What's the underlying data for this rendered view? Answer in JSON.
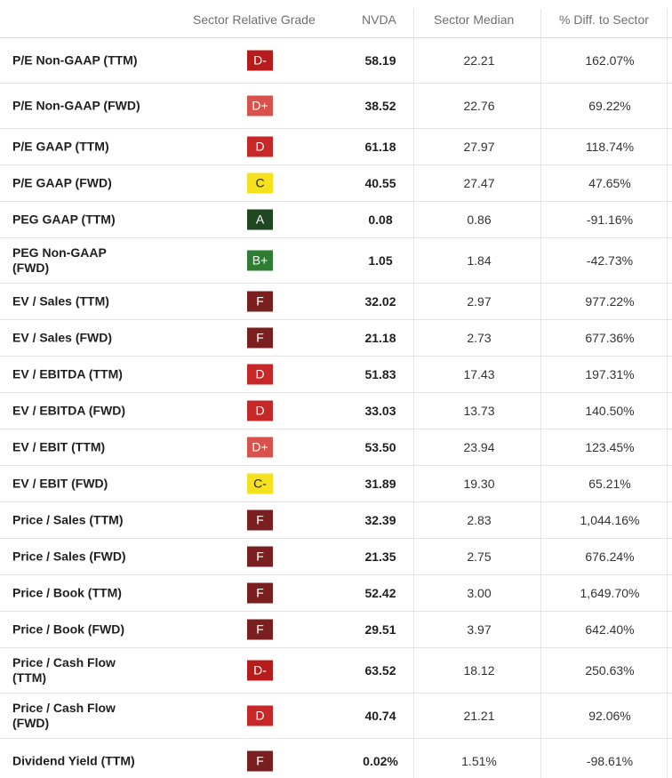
{
  "header": {
    "grade": "Sector Relative Grade",
    "ticker": "NVDA",
    "median": "Sector Median",
    "diff": "% Diff. to Sector"
  },
  "colors": {
    "A": "#1e4620",
    "B+": "#2f7d32",
    "C": "#f5e11d",
    "C-": "#f5e11d",
    "D+": "#d8514d",
    "D": "#c62828",
    "D-": "#b71c1c",
    "F": "#7a1f1f"
  },
  "rows": [
    {
      "label": "P/E Non-GAAP (TTM)",
      "grade": "D-",
      "nvda": "58.19",
      "median": "22.21",
      "diff": "162.07%"
    },
    {
      "label": "P/E Non-GAAP (FWD)",
      "grade": "D+",
      "nvda": "38.52",
      "median": "22.76",
      "diff": "69.22%"
    },
    {
      "label": "P/E GAAP (TTM)",
      "grade": "D",
      "nvda": "61.18",
      "median": "27.97",
      "diff": "118.74%"
    },
    {
      "label": "P/E GAAP (FWD)",
      "grade": "C",
      "nvda": "40.55",
      "median": "27.47",
      "diff": "47.65%"
    },
    {
      "label": "PEG GAAP (TTM)",
      "grade": "A",
      "nvda": "0.08",
      "median": "0.86",
      "diff": "-91.16%"
    },
    {
      "label": "PEG Non-GAAP (FWD)",
      "grade": "B+",
      "nvda": "1.05",
      "median": "1.84",
      "diff": "-42.73%"
    },
    {
      "label": "EV / Sales (TTM)",
      "grade": "F",
      "nvda": "32.02",
      "median": "2.97",
      "diff": "977.22%"
    },
    {
      "label": "EV / Sales (FWD)",
      "grade": "F",
      "nvda": "21.18",
      "median": "2.73",
      "diff": "677.36%"
    },
    {
      "label": "EV / EBITDA (TTM)",
      "grade": "D",
      "nvda": "51.83",
      "median": "17.43",
      "diff": "197.31%"
    },
    {
      "label": "EV / EBITDA (FWD)",
      "grade": "D",
      "nvda": "33.03",
      "median": "13.73",
      "diff": "140.50%"
    },
    {
      "label": "EV / EBIT (TTM)",
      "grade": "D+",
      "nvda": "53.50",
      "median": "23.94",
      "diff": "123.45%"
    },
    {
      "label": "EV / EBIT (FWD)",
      "grade": "C-",
      "nvda": "31.89",
      "median": "19.30",
      "diff": "65.21%"
    },
    {
      "label": "Price / Sales (TTM)",
      "grade": "F",
      "nvda": "32.39",
      "median": "2.83",
      "diff": "1,044.16%"
    },
    {
      "label": "Price / Sales (FWD)",
      "grade": "F",
      "nvda": "21.35",
      "median": "2.75",
      "diff": "676.24%"
    },
    {
      "label": "Price / Book (TTM)",
      "grade": "F",
      "nvda": "52.42",
      "median": "3.00",
      "diff": "1,649.70%"
    },
    {
      "label": "Price / Book (FWD)",
      "grade": "F",
      "nvda": "29.51",
      "median": "3.97",
      "diff": "642.40%"
    },
    {
      "label": "Price / Cash Flow (TTM)",
      "grade": "D-",
      "nvda": "63.52",
      "median": "18.12",
      "diff": "250.63%"
    },
    {
      "label": "Price / Cash Flow (FWD)",
      "grade": "D",
      "nvda": "40.74",
      "median": "21.21",
      "diff": "92.06%"
    },
    {
      "label": "Dividend Yield (TTM)",
      "grade": "F",
      "nvda": "0.02%",
      "median": "1.51%",
      "diff": "-98.61%"
    }
  ]
}
